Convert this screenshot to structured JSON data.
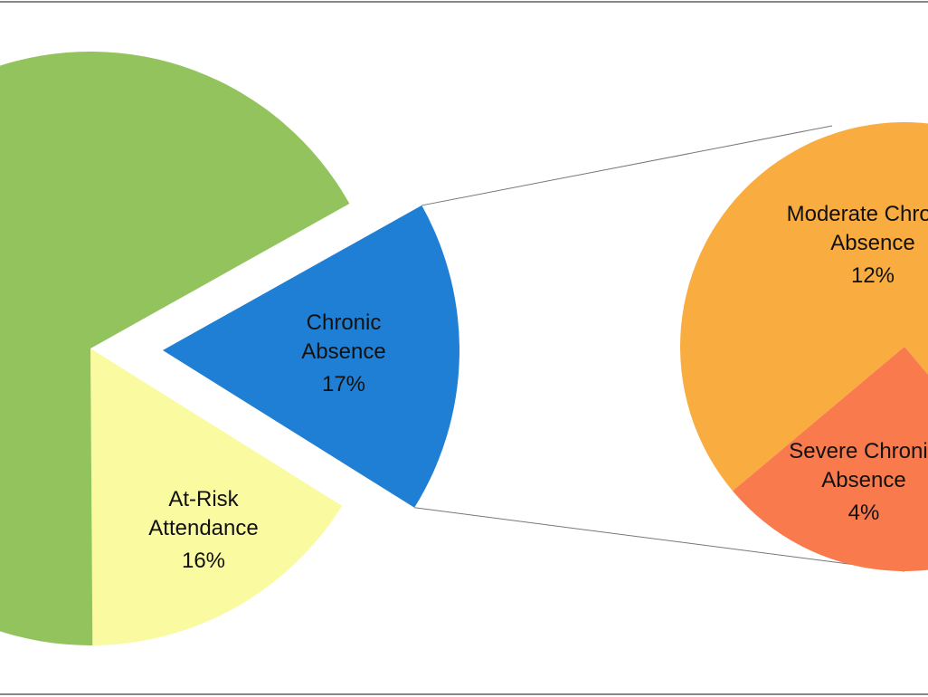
{
  "chart_data": {
    "type": "pie-of-pie",
    "categories": [
      null,
      "At-Risk Attendance",
      "Chronic Absence"
    ],
    "values": [
      67,
      16,
      17
    ],
    "value_labels": [
      null,
      "16%",
      "17%"
    ],
    "colors": [
      "#92c35c",
      "#fafaa0",
      "#1f7fd4"
    ],
    "breakdown": {
      "categories": [
        "Moderate Chronic Absence",
        "Severe Chronic Absence"
      ],
      "values": [
        12,
        4
      ],
      "value_labels": [
        "12%",
        "4%"
      ],
      "colors": [
        "#f9ac40",
        "#f97a4c"
      ]
    }
  }
}
